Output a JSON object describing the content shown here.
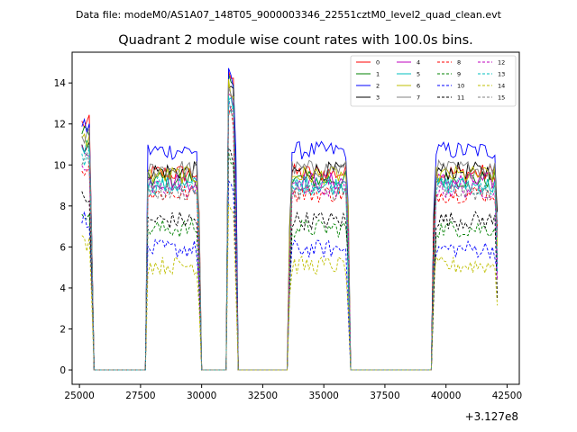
{
  "header": {
    "data_file_line": "Data file: modeM0/AS1A07_148T05_9000003346_22551cztM0_level2_quad_clean.evt",
    "title": "Quadrant 2 module wise count rates with 100.0s bins."
  },
  "chart_data": {
    "type": "line",
    "title": "Quadrant 2 module wise count rates with 100.0s bins.",
    "xlabel": "",
    "ylabel": "",
    "x_offset_label": "+3.127e8",
    "xlim": [
      24700,
      43000
    ],
    "ylim": [
      -0.7,
      15.5
    ],
    "xticks": [
      25000,
      27500,
      30000,
      32500,
      35000,
      37500,
      40000,
      42500
    ],
    "xtick_labels": [
      "25000",
      "27500",
      "30000",
      "32500",
      "35000",
      "37500",
      "40000",
      "42500"
    ],
    "yticks": [
      0,
      2,
      4,
      6,
      8,
      10,
      12,
      14
    ],
    "ytick_labels": [
      "0",
      "2",
      "4",
      "6",
      "8",
      "10",
      "12",
      "14"
    ],
    "bin_size_s": 100,
    "on_intervals": [
      [
        25100,
        25550
      ],
      [
        27750,
        29900
      ],
      [
        31050,
        31400
      ],
      [
        33600,
        36050
      ],
      [
        39500,
        42150
      ]
    ],
    "off_level": 0,
    "legend_position": "top-right",
    "series": [
      {
        "name": "0",
        "color": "#ff0000",
        "dash": "solid",
        "level": 9.6,
        "start": 12.0,
        "peak": 14.8
      },
      {
        "name": "1",
        "color": "#008000",
        "dash": "solid",
        "level": 9.3,
        "start": 11.6,
        "peak": 14.3
      },
      {
        "name": "2",
        "color": "#0000ff",
        "dash": "solid",
        "level": 10.7,
        "start": 11.8,
        "peak": 14.5
      },
      {
        "name": "3",
        "color": "#000000",
        "dash": "solid",
        "level": 9.7,
        "start": 11.0,
        "peak": 14.2
      },
      {
        "name": "4",
        "color": "#bf00bf",
        "dash": "solid",
        "level": 9.2,
        "start": 10.8,
        "peak": 13.9
      },
      {
        "name": "5",
        "color": "#00bfbf",
        "dash": "solid",
        "level": 9.0,
        "start": 10.9,
        "peak": 13.7
      },
      {
        "name": "6",
        "color": "#bfbf00",
        "dash": "solid",
        "level": 9.5,
        "start": 11.2,
        "peak": 14.0
      },
      {
        "name": "7",
        "color": "#808080",
        "dash": "solid",
        "level": 9.8,
        "start": 11.4,
        "peak": 14.1
      },
      {
        "name": "8",
        "color": "#ff0000",
        "dash": "dashed",
        "level": 8.6,
        "start": 9.8,
        "peak": 13.0
      },
      {
        "name": "9",
        "color": "#008000",
        "dash": "dashed",
        "level": 6.9,
        "start": 7.8,
        "peak": 10.7
      },
      {
        "name": "10",
        "color": "#0000ff",
        "dash": "dashed",
        "level": 5.9,
        "start": 7.4,
        "peak": 9.2
      },
      {
        "name": "11",
        "color": "#000000",
        "dash": "dashed",
        "level": 7.3,
        "start": 8.4,
        "peak": 10.9
      },
      {
        "name": "12",
        "color": "#bf00bf",
        "dash": "dashed",
        "level": 8.8,
        "start": 10.0,
        "peak": 13.2
      },
      {
        "name": "13",
        "color": "#00bfbf",
        "dash": "dashed",
        "level": 9.0,
        "start": 10.4,
        "peak": 13.4
      },
      {
        "name": "14",
        "color": "#bfbf00",
        "dash": "dashed",
        "level": 5.1,
        "start": 6.2,
        "peak": 8.6
      },
      {
        "name": "15",
        "color": "#808080",
        "dash": "dashed",
        "level": 8.7,
        "start": 10.2,
        "peak": 12.9
      }
    ]
  }
}
